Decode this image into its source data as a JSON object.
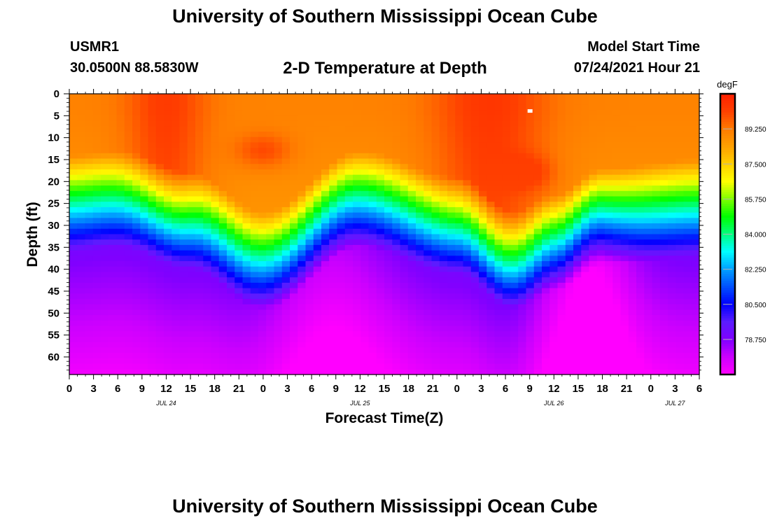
{
  "header": {
    "title": "University of Southern Mississippi Ocean Cube",
    "station": "USMR1",
    "coordinates": "30.0500N  88.5830W",
    "chart_title": "2-D Temperature at Depth",
    "start_label": "Model Start Time",
    "start_value": "07/24/2021 Hour 21"
  },
  "footer": {
    "title": "University of Southern Mississippi Ocean Cube"
  },
  "chart_data": {
    "type": "heatmap",
    "title": "2-D Temperature at Depth",
    "xlabel": "Forecast Time(Z)",
    "ylabel": "Depth (ft)",
    "x_ticks": [
      "0",
      "3",
      "6",
      "9",
      "12",
      "15",
      "18",
      "21",
      "0",
      "3",
      "6",
      "9",
      "12",
      "15",
      "18",
      "21",
      "0",
      "3",
      "6",
      "9",
      "12",
      "15",
      "18",
      "21",
      "0",
      "3",
      "6"
    ],
    "x_range_hours": [
      0,
      78
    ],
    "date_labels": [
      {
        "label": "JUL 24",
        "hour": 12
      },
      {
        "label": "JUL 25",
        "hour": 36
      },
      {
        "label": "JUL 26",
        "hour": 60
      },
      {
        "label": "JUL 27",
        "hour": 75
      }
    ],
    "y_ticks": [
      "0",
      "5",
      "10",
      "15",
      "20",
      "25",
      "30",
      "35",
      "40",
      "45",
      "50",
      "55",
      "60"
    ],
    "y_range_ft": [
      0,
      64
    ],
    "colorbar": {
      "unit": "degF",
      "min": 77.0,
      "max": 91.0,
      "tick_labels": [
        "89.250",
        "87.500",
        "85.750",
        "84.000",
        "82.250",
        "80.500",
        "78.750"
      ],
      "tick_values": [
        89.25,
        87.5,
        85.75,
        84.0,
        82.25,
        80.5,
        78.75
      ],
      "colors": [
        "#ff00ff",
        "#cc00ff",
        "#8000ff",
        "#5a1cff",
        "#0000ff",
        "#0050ff",
        "#00a0ff",
        "#00ffff",
        "#00ff80",
        "#00ff00",
        "#80ff00",
        "#ffff00",
        "#ffd000",
        "#ffa000",
        "#ff7a00",
        "#ff4000",
        "#ff2000"
      ]
    },
    "thermocline_top_ft": [
      {
        "hour": 0,
        "depth": 14
      },
      {
        "hour": 6,
        "depth": 13
      },
      {
        "hour": 15,
        "depth": 18
      },
      {
        "hour": 24,
        "depth": 27
      },
      {
        "hour": 36,
        "depth": 13
      },
      {
        "hour": 48,
        "depth": 19
      },
      {
        "hour": 55,
        "depth": 27
      },
      {
        "hour": 60,
        "depth": 23
      },
      {
        "hour": 66,
        "depth": 17
      },
      {
        "hour": 78,
        "depth": 15
      }
    ],
    "surface_max_marker": {
      "hour": 57,
      "depth_ft": 4
    },
    "surface_temp_range": [
      88.6,
      90.4
    ],
    "bottom_temp_range": [
      77.0,
      78.9
    ]
  }
}
